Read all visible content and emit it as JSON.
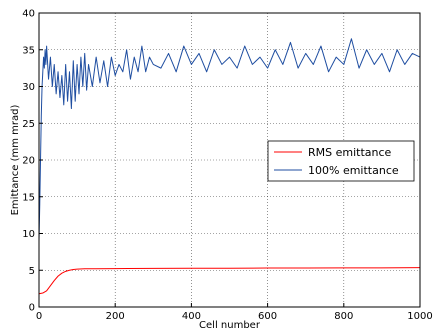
{
  "chart_data": {
    "type": "line",
    "title": "",
    "xlabel": "Cell number",
    "ylabel": "Emittance (mm mrad)",
    "xlim": [
      0,
      1000
    ],
    "ylim": [
      0,
      40
    ],
    "x_ticks": [
      0,
      200,
      400,
      600,
      800,
      1000
    ],
    "y_ticks": [
      0,
      5,
      10,
      15,
      20,
      25,
      30,
      35,
      40
    ],
    "grid": true,
    "legend_position": "right",
    "series": [
      {
        "name": "RMS emittance",
        "color": "#ff0000",
        "x": [
          0,
          10,
          20,
          30,
          40,
          50,
          60,
          70,
          80,
          90,
          100,
          120,
          150,
          200,
          300,
          400,
          500,
          600,
          700,
          800,
          900,
          1000
        ],
        "y": [
          1.8,
          1.9,
          2.2,
          2.9,
          3.6,
          4.2,
          4.6,
          4.85,
          5.0,
          5.1,
          5.15,
          5.2,
          5.2,
          5.22,
          5.25,
          5.27,
          5.28,
          5.3,
          5.3,
          5.32,
          5.33,
          5.35
        ]
      },
      {
        "name": "100% emittance",
        "color": "#1f4ea1",
        "x": [
          0,
          2,
          4,
          6,
          8,
          10,
          12,
          14,
          16,
          18,
          20,
          25,
          30,
          35,
          40,
          45,
          50,
          55,
          60,
          65,
          70,
          75,
          80,
          85,
          90,
          95,
          100,
          105,
          110,
          115,
          120,
          125,
          130,
          140,
          150,
          160,
          170,
          180,
          190,
          200,
          210,
          220,
          230,
          240,
          250,
          260,
          270,
          280,
          290,
          300,
          320,
          340,
          360,
          380,
          400,
          420,
          440,
          460,
          480,
          500,
          520,
          540,
          560,
          580,
          600,
          620,
          640,
          660,
          680,
          700,
          720,
          740,
          760,
          780,
          800,
          820,
          840,
          860,
          880,
          900,
          920,
          940,
          960,
          980,
          1000
        ],
        "y": [
          9,
          14,
          20,
          26,
          30,
          32,
          34,
          32.5,
          35,
          33,
          35.5,
          31,
          34,
          30,
          33,
          29,
          32,
          28.5,
          31.5,
          27.5,
          33,
          28,
          32,
          27,
          33.5,
          28,
          33,
          29,
          34,
          30,
          34.5,
          29.5,
          33,
          30,
          34,
          30.5,
          33.5,
          30,
          34,
          31.5,
          33,
          32,
          35,
          31,
          34,
          32,
          35.5,
          32,
          34,
          33,
          32.5,
          34.5,
          32,
          35.5,
          33,
          34.5,
          32,
          35,
          33,
          34,
          32.5,
          35.5,
          33,
          34,
          32.5,
          35,
          33,
          36,
          32.5,
          34.5,
          33,
          35.5,
          32,
          34,
          33,
          36.5,
          32.5,
          35,
          33,
          34.5,
          32,
          35,
          33,
          34.5,
          34
        ]
      }
    ]
  }
}
